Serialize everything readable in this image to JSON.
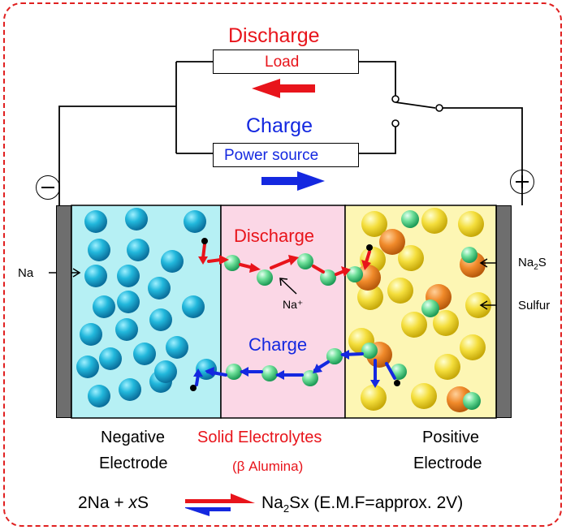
{
  "labels": {
    "discharge_top": "Discharge",
    "load": "Load",
    "charge_top": "Charge",
    "power_source": "Power source",
    "discharge_mid": "Discharge",
    "charge_mid": "Charge",
    "na": "Na",
    "na_ion": "Na⁺",
    "na2s_prefix": "Na",
    "na2s_sub": "2",
    "na2s_suffix": "S",
    "sulfur": "Sulfur",
    "negative_line1": "Negative",
    "negative_line2": "Electrode",
    "solid_line1": "Solid Electrolytes",
    "solid_line2": "(β Alumina)",
    "positive_line1": "Positive",
    "positive_line2": "Electrode",
    "eq_left_a": "2Na + ",
    "eq_left_x": "x",
    "eq_left_b": "S",
    "eq_right_a": "Na",
    "eq_right_sub": "2",
    "eq_right_b": "Sx  (E.M.F=approx. 2V)"
  },
  "colors": {
    "red": "#e8141b",
    "blue": "#1428e0",
    "negative_region": "#b6f0f4",
    "electrolyte_region": "#fbd7e6",
    "positive_region": "#fdf6b4"
  },
  "icons": [
    "minus-sign-icon",
    "plus-sign-icon",
    "switch-icon"
  ]
}
